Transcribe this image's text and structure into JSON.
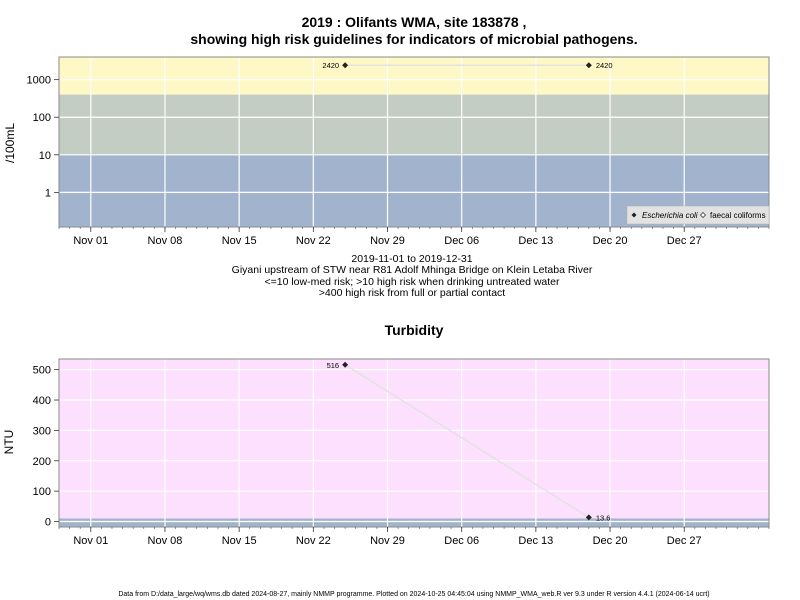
{
  "chart_data": [
    {
      "type": "line",
      "title_line1": "2019 : Olifants WMA, site 183878 ,",
      "title_line2": "showing high risk guidelines for indicators of microbial pathogens.",
      "ylabel": "/100mL",
      "yscale": "log",
      "ylim": [
        0.12,
        4000
      ],
      "y_ticks": [
        "1",
        "10",
        "100",
        "1000"
      ],
      "y_tick_values": [
        1,
        10,
        100,
        1000
      ],
      "x_range": [
        "2019-10-29",
        "2020-01-04"
      ],
      "x_ticks": [
        "Nov 01",
        "Nov 08",
        "Nov 15",
        "Nov 22",
        "Nov 29",
        "Dec 06",
        "Dec 13",
        "Dec 20",
        "Dec 27"
      ],
      "x_tick_dates": [
        "2019-11-01",
        "2019-11-08",
        "2019-11-15",
        "2019-11-22",
        "2019-11-29",
        "2019-12-06",
        "2019-12-13",
        "2019-12-20",
        "2019-12-27"
      ],
      "bands": [
        {
          "from": 0.12,
          "to": 10,
          "color": "#a2b4cd"
        },
        {
          "from": 10,
          "to": 400,
          "color": "#c3cdc4"
        },
        {
          "from": 400,
          "to": 4000,
          "color": "#fef8c7"
        }
      ],
      "series": [
        {
          "name": "Escherichia coli",
          "marker": "filled-diamond",
          "points": [
            {
              "x": "2019-11-25",
              "y": 2420,
              "label": "2420"
            },
            {
              "x": "2019-12-18",
              "y": 2420,
              "label": "2420"
            }
          ]
        }
      ],
      "legend": {
        "position": "bottom-right",
        "items": [
          {
            "label": "Escherichia coli",
            "marker": "filled-diamond"
          },
          {
            "label": "faecal coliforms",
            "marker": "open-diamond"
          }
        ]
      },
      "grid": true,
      "subtitle_lines": [
        "2019-11-01 to 2019-12-31",
        "Giyani upstream of STW near R81 Adolf Mhinga Bridge on Klein Letaba River",
        "<=10 low-med risk; >10 high risk when drinking untreated water",
        ">400 high risk from full or partial contact"
      ]
    },
    {
      "type": "line",
      "title": "Turbidity",
      "ylabel": "NTU",
      "ylim": [
        -18,
        535
      ],
      "y_ticks": [
        "0",
        "100",
        "200",
        "300",
        "400",
        "500"
      ],
      "y_tick_values": [
        0,
        100,
        200,
        300,
        400,
        500
      ],
      "x_range": [
        "2019-10-29",
        "2020-01-04"
      ],
      "x_ticks": [
        "Nov 01",
        "Nov 08",
        "Nov 15",
        "Nov 22",
        "Nov 29",
        "Dec 06",
        "Dec 13",
        "Dec 20",
        "Dec 27"
      ],
      "x_tick_dates": [
        "2019-11-01",
        "2019-11-08",
        "2019-11-15",
        "2019-11-22",
        "2019-11-29",
        "2019-12-06",
        "2019-12-13",
        "2019-12-20",
        "2019-12-27"
      ],
      "bands": [
        {
          "from": -18,
          "to": 10,
          "color": "#a2b4cd"
        },
        {
          "from": 10,
          "to": 535,
          "color": "#fde0fd"
        }
      ],
      "series": [
        {
          "marker": "filled-diamond",
          "points": [
            {
              "x": "2019-11-25",
              "y": 516,
              "label": "516"
            },
            {
              "x": "2019-12-18",
              "y": 13.6,
              "label": "13.6"
            }
          ]
        }
      ],
      "grid": true
    }
  ],
  "footer": "Data from D:/data_large/wq/wms.db dated 2024-08-27, mainly NMMP programme. Plotted on 2024-10-25 04:45:04 using NMMP_WMA_web.R ver 9.3 under R version 4.4.1 (2024-06-14 ucrt)",
  "colors": {
    "frame": "#8a8a8a",
    "grid": "#ffffff",
    "line": "#e2e2e2",
    "marker": "#222222"
  }
}
